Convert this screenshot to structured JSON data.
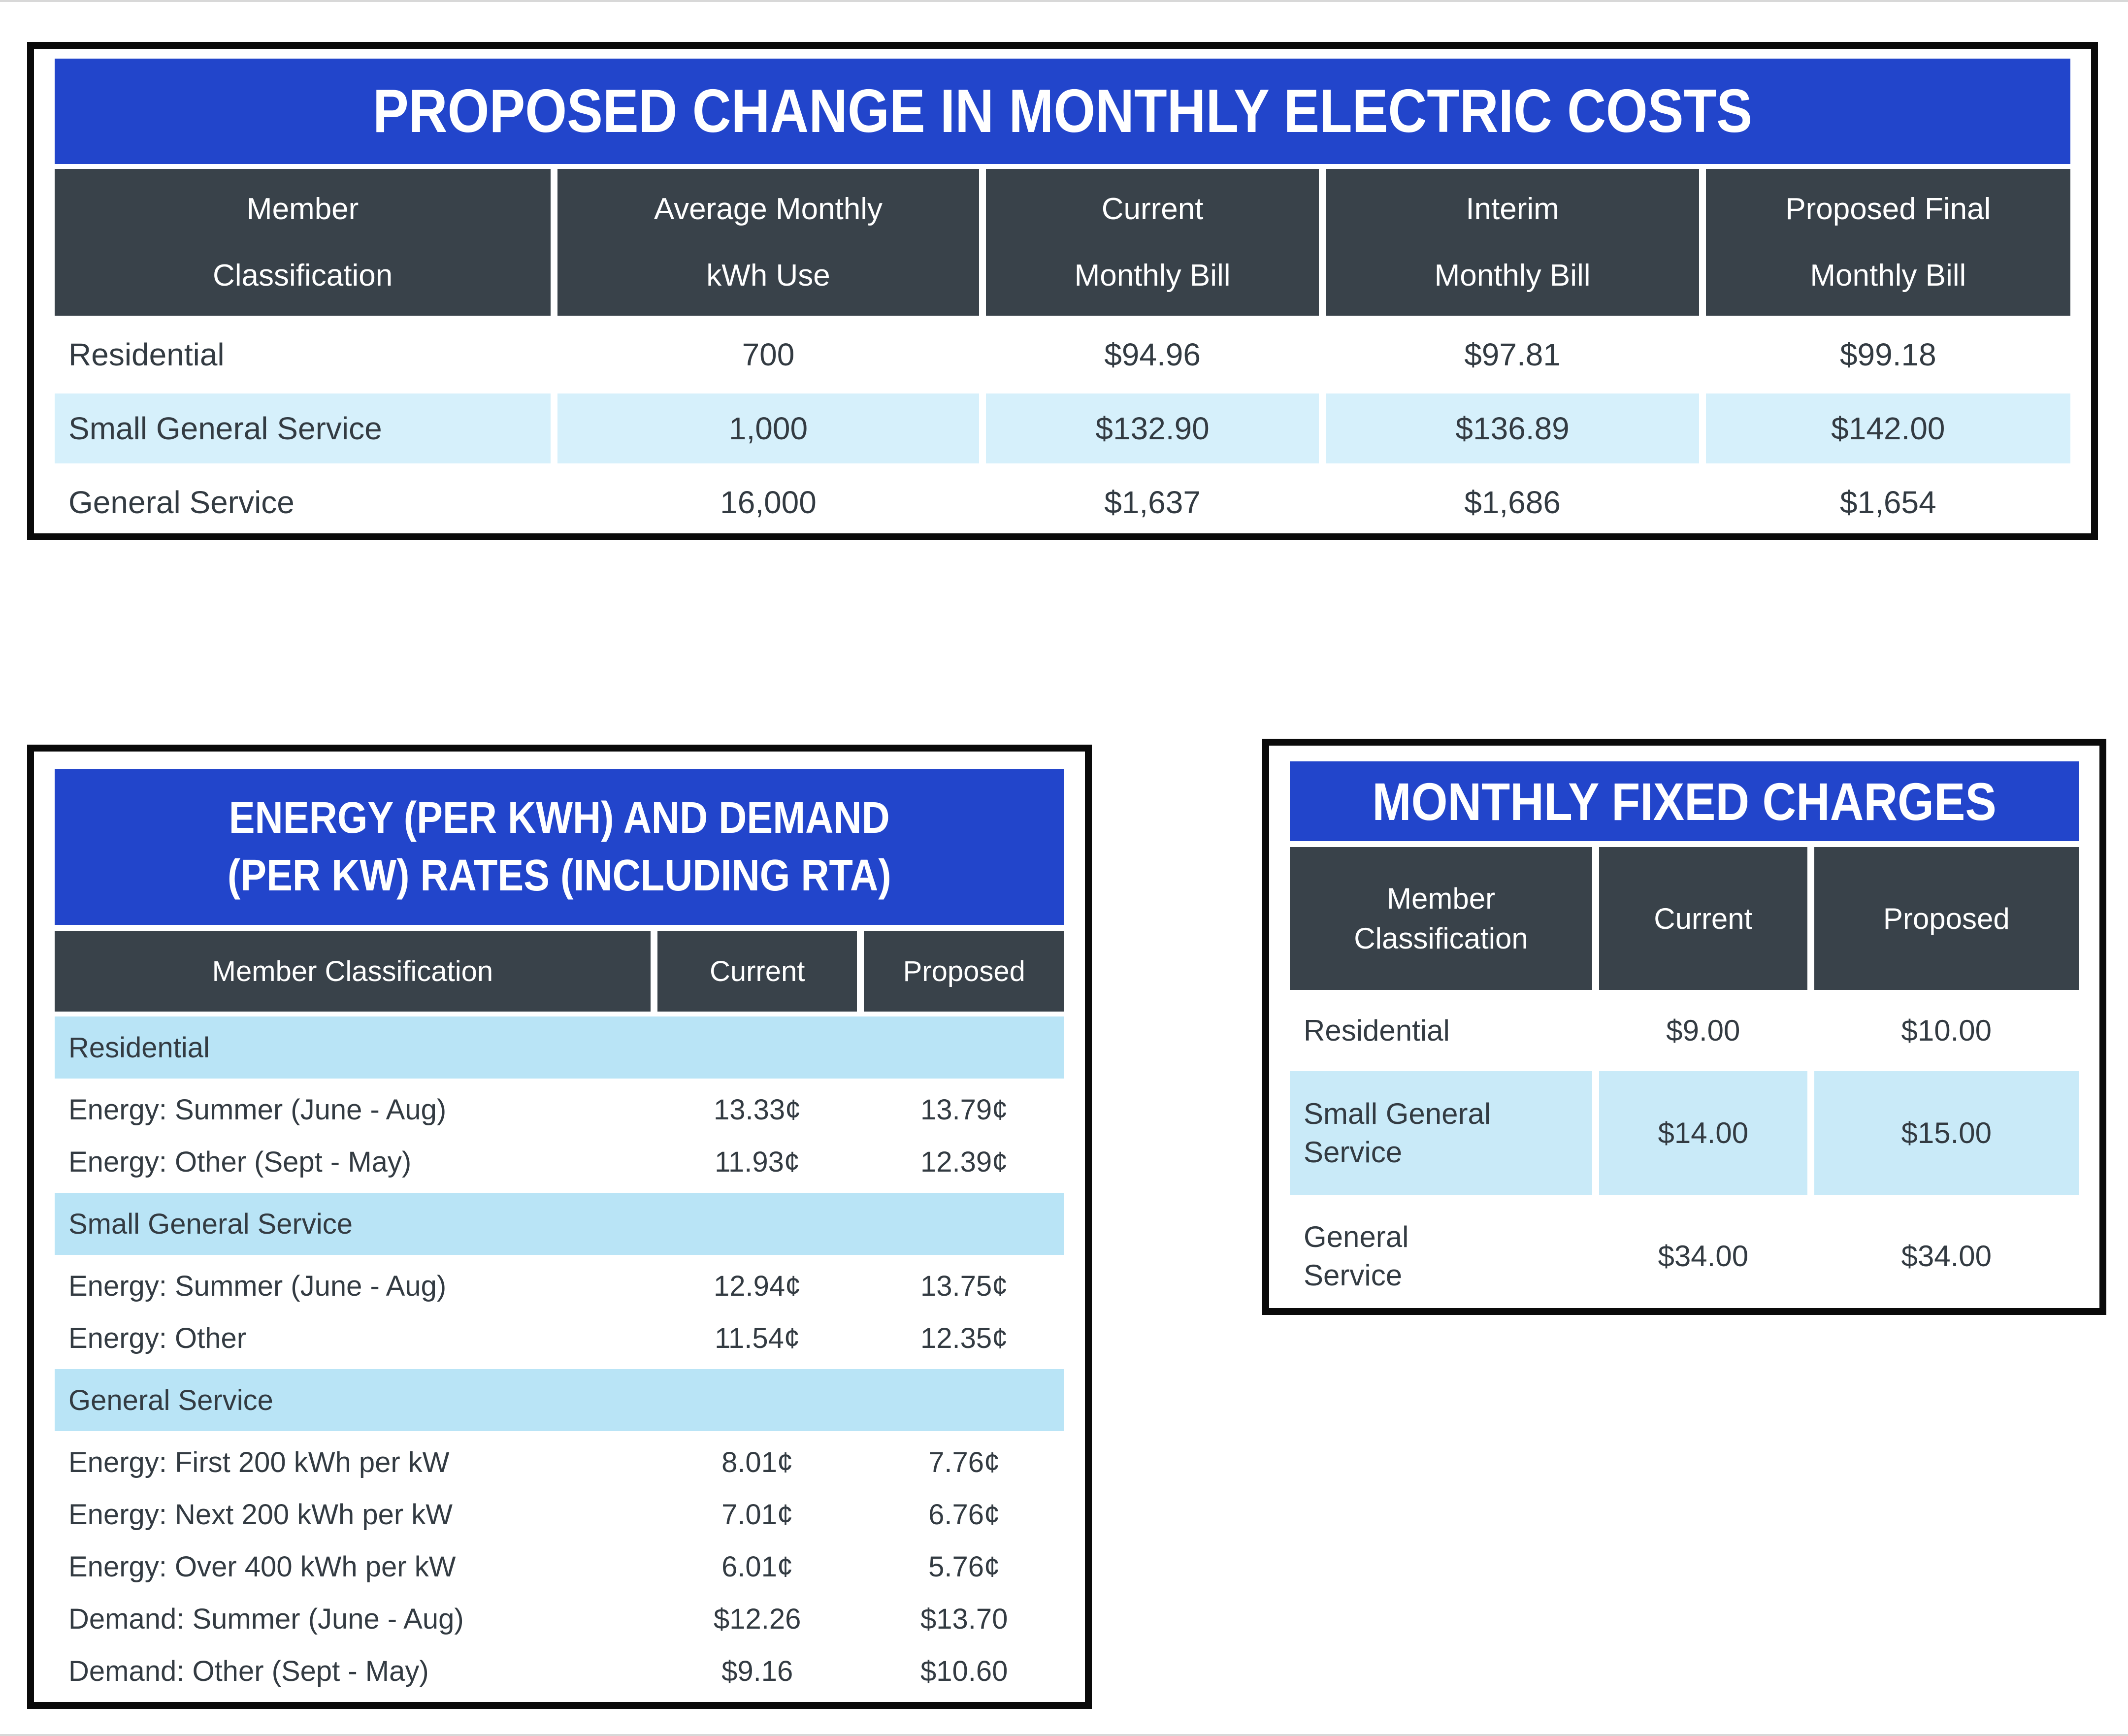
{
  "colors": {
    "title_bar_blue": "#2245cb",
    "header_dark": "#39424a",
    "body_text": "#333b42",
    "alt_row_light_blue_top_table": "#d6f0fb",
    "alt_row_light_blue_fixed_table": "#c9eaf8",
    "section_row_light_blue": "#b9e4f6",
    "table_border_black": "#0a0a0a"
  },
  "top_table": {
    "title": "PROPOSED CHANGE IN MONTHLY ELECTRIC COSTS",
    "columns": [
      {
        "line1": "Member",
        "line2": "Classification"
      },
      {
        "line1": "Average Monthly",
        "line2": "kWh Use"
      },
      {
        "line1": "Current",
        "line2": "Monthly Bill"
      },
      {
        "line1": "Interim",
        "line2": "Monthly Bill"
      },
      {
        "line1": "Proposed Final",
        "line2": "Monthly Bill"
      }
    ],
    "rows": [
      {
        "classification": "Residential",
        "kwh": "700",
        "current": "$94.96",
        "interim": "$97.81",
        "proposed": "$99.18"
      },
      {
        "classification": "Small General Service",
        "kwh": "1,000",
        "current": "$132.90",
        "interim": "$136.89",
        "proposed": "$142.00"
      },
      {
        "classification": "General Service",
        "kwh": "16,000",
        "current": "$1,637",
        "interim": "$1,686",
        "proposed": "$1,654"
      }
    ]
  },
  "energy_table": {
    "title_line1": "ENERGY (PER KWH) AND DEMAND",
    "title_line2": "(PER KW) RATES (INCLUDING RTA)",
    "columns": [
      "Member Classification",
      "Current",
      "Proposed"
    ],
    "sections": [
      {
        "label": "Residential",
        "rows": [
          {
            "label": "Energy: Summer (June - Aug)",
            "current": "13.33¢",
            "proposed": "13.79¢"
          },
          {
            "label": "Energy: Other (Sept - May)",
            "current": "11.93¢",
            "proposed": "12.39¢"
          }
        ]
      },
      {
        "label": "Small General Service",
        "rows": [
          {
            "label": "Energy: Summer (June - Aug)",
            "current": "12.94¢",
            "proposed": "13.75¢"
          },
          {
            "label": "Energy: Other",
            "current": "11.54¢",
            "proposed": "12.35¢"
          }
        ]
      },
      {
        "label": "General Service",
        "rows": [
          {
            "label": "Energy: First 200 kWh per kW",
            "current": "8.01¢",
            "proposed": "7.76¢"
          },
          {
            "label": "Energy: Next 200 kWh per kW",
            "current": "7.01¢",
            "proposed": "6.76¢"
          },
          {
            "label": "Energy: Over 400 kWh per kW",
            "current": "6.01¢",
            "proposed": "5.76¢"
          },
          {
            "label": "Demand: Summer (June - Aug)",
            "current": "$12.26",
            "proposed": "$13.70"
          },
          {
            "label": "Demand: Other (Sept - May)",
            "current": "$9.16",
            "proposed": "$10.60"
          }
        ]
      }
    ]
  },
  "fixed_table": {
    "title": "MONTHLY FIXED CHARGES",
    "columns": [
      {
        "line1": "Member",
        "line2": "Classification"
      },
      {
        "line1": "Current",
        "line2": ""
      },
      {
        "line1": "Proposed",
        "line2": ""
      }
    ],
    "rows": [
      {
        "line1": "Residential",
        "line2": "",
        "current": "$9.00",
        "proposed": "$10.00"
      },
      {
        "line1": "Small General",
        "line2": "Service",
        "current": "$14.00",
        "proposed": "$15.00"
      },
      {
        "line1": "General",
        "line2": "Service",
        "current": "$34.00",
        "proposed": "$34.00"
      }
    ]
  }
}
